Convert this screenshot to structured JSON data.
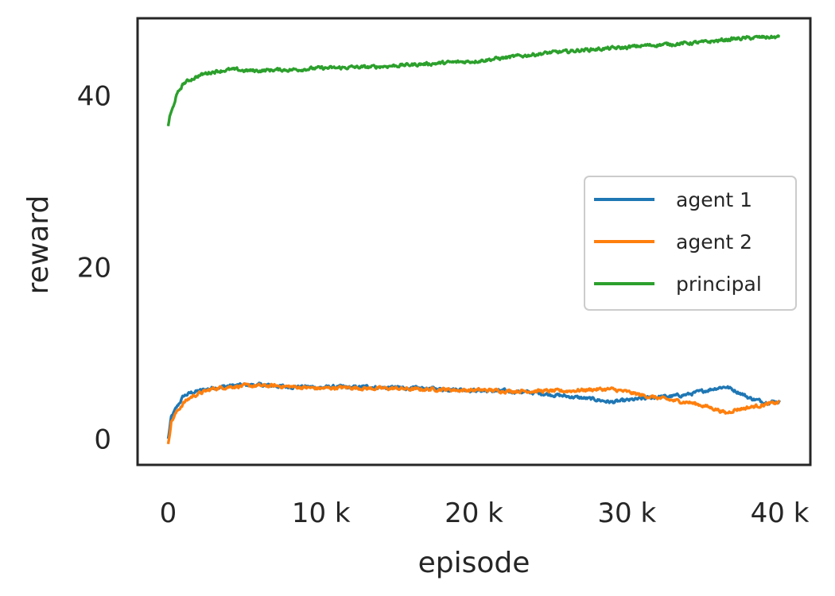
{
  "chart_data": {
    "type": "line",
    "xlabel": "episode",
    "ylabel": "reward",
    "xlim": [
      -2000,
      42000
    ],
    "ylim": [
      -3,
      49
    ],
    "xticks": [
      {
        "value": 0,
        "label": "0"
      },
      {
        "value": 10000,
        "label": "10 k"
      },
      {
        "value": 20000,
        "label": "20 k"
      },
      {
        "value": 30000,
        "label": "30 k"
      },
      {
        "value": 40000,
        "label": "40 k"
      }
    ],
    "yticks": [
      {
        "value": 0,
        "label": "0"
      },
      {
        "value": 20,
        "label": "20"
      },
      {
        "value": 40,
        "label": "40"
      }
    ],
    "grid": false,
    "legend_position": "center-right",
    "series": [
      {
        "name": "agent 1",
        "color": "#1f77b4",
        "x": [
          0,
          200,
          500,
          1000,
          1500,
          2000,
          2500,
          3000,
          4000,
          5000,
          6000,
          7000,
          8000,
          9000,
          10000,
          11000,
          12000,
          13000,
          14000,
          15000,
          16000,
          17000,
          18000,
          19000,
          20000,
          21000,
          22000,
          23000,
          24000,
          25000,
          26000,
          27000,
          28000,
          29000,
          30000,
          31000,
          32000,
          33000,
          34000,
          35000,
          36000,
          36500,
          37000,
          37500,
          38000,
          39000,
          40000
        ],
        "y": [
          0,
          2.5,
          3.5,
          5.0,
          5.4,
          5.6,
          5.8,
          6.0,
          6.2,
          6.3,
          6.3,
          6.2,
          6.1,
          6.1,
          6.0,
          6.1,
          6.0,
          6.1,
          6.0,
          6.0,
          5.9,
          5.9,
          5.8,
          5.8,
          5.7,
          5.6,
          5.6,
          5.5,
          5.4,
          5.2,
          5.0,
          4.8,
          4.6,
          4.3,
          4.5,
          4.7,
          4.9,
          5.0,
          5.2,
          5.6,
          6.0,
          6.1,
          5.7,
          5.3,
          4.8,
          4.3,
          4.4
        ]
      },
      {
        "name": "agent 2",
        "color": "#ff7f0e",
        "x": [
          0,
          200,
          500,
          1000,
          1500,
          2000,
          2500,
          3000,
          4000,
          5000,
          6000,
          7000,
          8000,
          9000,
          10000,
          11000,
          12000,
          13000,
          14000,
          15000,
          16000,
          17000,
          18000,
          19000,
          20000,
          21000,
          22000,
          23000,
          24000,
          25000,
          26000,
          27000,
          28000,
          29000,
          30000,
          31000,
          32000,
          33000,
          34000,
          35000,
          36000,
          36500,
          37000,
          38000,
          39000,
          40000
        ],
        "y": [
          -0.5,
          2.0,
          3.0,
          4.2,
          4.9,
          5.3,
          5.6,
          5.9,
          6.1,
          6.2,
          6.2,
          6.2,
          6.1,
          6.0,
          5.9,
          6.0,
          6.0,
          5.9,
          5.9,
          5.9,
          5.8,
          5.8,
          5.8,
          5.7,
          5.7,
          5.7,
          5.6,
          5.6,
          5.6,
          5.6,
          5.6,
          5.7,
          5.8,
          5.8,
          5.5,
          5.1,
          4.8,
          4.5,
          4.3,
          3.9,
          3.4,
          3.0,
          3.4,
          3.7,
          4.0,
          4.3
        ]
      },
      {
        "name": "principal",
        "color": "#2ca02c",
        "x": [
          0,
          100,
          300,
          500,
          800,
          1000,
          1500,
          2000,
          2500,
          3000,
          3500,
          4000,
          4500,
          5000,
          6000,
          7000,
          8000,
          9000,
          10000,
          11000,
          12000,
          13000,
          14000,
          15000,
          16000,
          17000,
          18000,
          19000,
          20000,
          21000,
          22000,
          23000,
          24000,
          25000,
          26000,
          27000,
          28000,
          29000,
          30000,
          31000,
          32000,
          33000,
          34000,
          35000,
          36000,
          37000,
          38000,
          39000,
          40000
        ],
        "y": [
          36.5,
          37.5,
          38.5,
          39.8,
          40.8,
          41.4,
          41.9,
          42.3,
          42.6,
          42.8,
          42.9,
          43.0,
          43.0,
          42.9,
          42.9,
          43.0,
          43.0,
          43.1,
          43.2,
          43.2,
          43.3,
          43.3,
          43.4,
          43.5,
          43.6,
          43.7,
          43.8,
          43.9,
          44.0,
          44.2,
          44.4,
          44.6,
          44.8,
          45.0,
          45.1,
          45.3,
          45.4,
          45.5,
          45.6,
          45.8,
          45.9,
          46.0,
          46.1,
          46.2,
          46.4,
          46.6,
          46.7,
          46.8,
          46.8
        ]
      }
    ]
  }
}
